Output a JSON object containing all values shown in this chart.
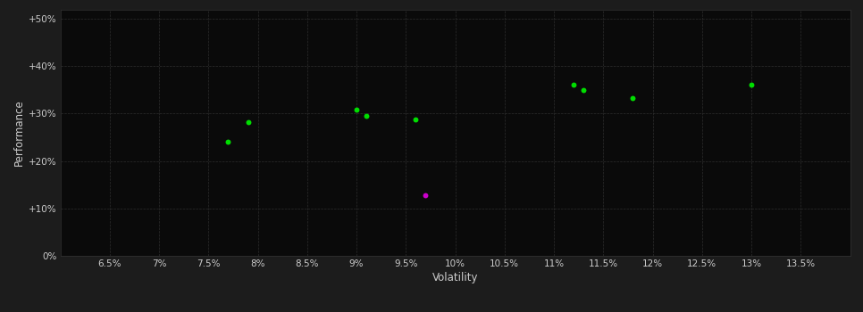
{
  "background_color": "#1c1c1c",
  "plot_bg_color": "#0a0a0a",
  "grid_color": "#2d2d2d",
  "text_color": "#cccccc",
  "xlabel": "Volatility",
  "ylabel": "Performance",
  "xlim": [
    0.06,
    0.14
  ],
  "ylim": [
    0.0,
    0.52
  ],
  "xticks": [
    0.065,
    0.07,
    0.075,
    0.08,
    0.085,
    0.09,
    0.095,
    0.1,
    0.105,
    0.11,
    0.115,
    0.12,
    0.125,
    0.13,
    0.135
  ],
  "xtick_labels": [
    "6.5%",
    "7%",
    "7.5%",
    "8%",
    "8.5%",
    "9%",
    "9.5%",
    "10%",
    "10.5%",
    "11%",
    "11.5%",
    "12%",
    "12.5%",
    "13%",
    "13.5%"
  ],
  "yticks": [
    0.0,
    0.1,
    0.2,
    0.3,
    0.4,
    0.5
  ],
  "ytick_labels": [
    "0%",
    "+10%",
    "+20%",
    "+30%",
    "+40%",
    "+50%"
  ],
  "green_points": [
    [
      0.077,
      0.24
    ],
    [
      0.079,
      0.282
    ],
    [
      0.09,
      0.308
    ],
    [
      0.091,
      0.296
    ],
    [
      0.096,
      0.287
    ],
    [
      0.112,
      0.362
    ],
    [
      0.113,
      0.349
    ],
    [
      0.118,
      0.333
    ],
    [
      0.13,
      0.362
    ]
  ],
  "magenta_points": [
    [
      0.097,
      0.128
    ]
  ],
  "green_color": "#00dd00",
  "magenta_color": "#cc00cc",
  "marker_size": 18
}
